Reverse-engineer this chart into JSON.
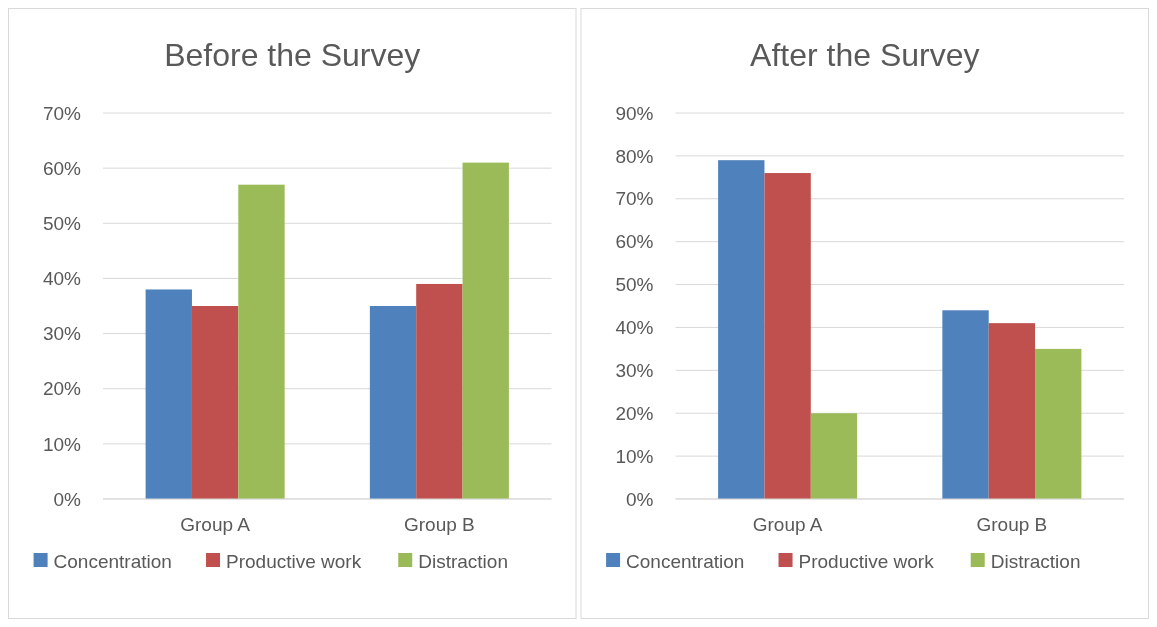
{
  "chart_data": [
    {
      "type": "bar",
      "title": "Before the Survey",
      "categories": [
        "Group A",
        "Group B"
      ],
      "series": [
        {
          "name": "Concentration",
          "color": "#4f81bd",
          "values": [
            38,
            35
          ]
        },
        {
          "name": "Productive work",
          "color": "#c0504d",
          "values": [
            35,
            39
          ]
        },
        {
          "name": "Distraction",
          "color": "#9bbb59",
          "values": [
            57,
            61
          ]
        }
      ],
      "ylim": [
        0,
        70
      ],
      "yticks": [
        {
          "value": 0,
          "label": "0%"
        },
        {
          "value": 10,
          "label": "10%"
        },
        {
          "value": 20,
          "label": "20%"
        },
        {
          "value": 30,
          "label": "30%"
        },
        {
          "value": 40,
          "label": "40%"
        },
        {
          "value": 50,
          "label": "50%"
        },
        {
          "value": 60,
          "label": "60%"
        },
        {
          "value": 70,
          "label": "70%"
        }
      ],
      "grid": "y",
      "legend": "bottom"
    },
    {
      "type": "bar",
      "title": "After the Survey",
      "categories": [
        "Group A",
        "Group B"
      ],
      "series": [
        {
          "name": "Concentration",
          "color": "#4f81bd",
          "values": [
            79,
            44
          ]
        },
        {
          "name": "Productive work",
          "color": "#c0504d",
          "values": [
            76,
            41
          ]
        },
        {
          "name": "Distraction",
          "color": "#9bbb59",
          "values": [
            20,
            35
          ]
        }
      ],
      "ylim": [
        0,
        90
      ],
      "yticks": [
        {
          "value": 0,
          "label": "0%"
        },
        {
          "value": 10,
          "label": "10%"
        },
        {
          "value": 20,
          "label": "20%"
        },
        {
          "value": 30,
          "label": "30%"
        },
        {
          "value": 40,
          "label": "40%"
        },
        {
          "value": 50,
          "label": "50%"
        },
        {
          "value": 60,
          "label": "60%"
        },
        {
          "value": 70,
          "label": "70%"
        },
        {
          "value": 80,
          "label": "80%"
        },
        {
          "value": 90,
          "label": "90%"
        }
      ],
      "grid": "y",
      "legend": "bottom"
    }
  ]
}
